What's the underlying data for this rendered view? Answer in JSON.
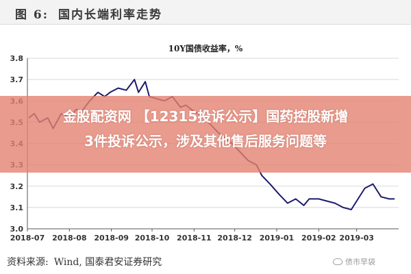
{
  "header": {
    "figure_label": "图 6:",
    "title": "国内长端利率走势"
  },
  "banner": {
    "line1": "金股配资网 【12315投诉公示】国药控股新增",
    "line2": "3件投诉公示，涉及其他售后服务问题等"
  },
  "source": {
    "label": "资料来源:",
    "value": "Wind, 国泰君安证券研究"
  },
  "watermark": {
    "text": "债市早袋",
    "icon": "wechat-icon"
  },
  "colors": {
    "series": "#1a1a6e",
    "banner": "#e48270",
    "grid": "#d8d8d8"
  },
  "chart_data": {
    "type": "line",
    "title": "10Y国债收益率，%",
    "xlabel": "",
    "ylabel": "",
    "ylim": [
      3.0,
      3.8
    ],
    "yticks": [
      "3.0",
      "3.1",
      "3.2",
      "3.3",
      "3.4",
      "3.5",
      "3.6",
      "3.7",
      "3.8"
    ],
    "xticks": [
      "2018-07",
      "2018-08",
      "2018-09",
      "2018-10",
      "2018-11",
      "2018-12",
      "2019-01",
      "2019-02",
      "2019-03"
    ],
    "grid": true,
    "legend": "none",
    "series": [
      {
        "name": "",
        "x": [
          "2018-07-02",
          "2018-07-06",
          "2018-07-10",
          "2018-07-16",
          "2018-07-20",
          "2018-07-26",
          "2018-08-01",
          "2018-08-06",
          "2018-08-10",
          "2018-08-16",
          "2018-08-22",
          "2018-08-27",
          "2018-08-31",
          "2018-09-06",
          "2018-09-12",
          "2018-09-18",
          "2018-09-21",
          "2018-09-26",
          "2018-09-29",
          "2018-10-10",
          "2018-10-16",
          "2018-10-22",
          "2018-10-26",
          "2018-11-01",
          "2018-11-07",
          "2018-11-13",
          "2018-11-19",
          "2018-11-23",
          "2018-11-29",
          "2018-12-05",
          "2018-12-11",
          "2018-12-17",
          "2018-12-21",
          "2018-12-27",
          "2019-01-03",
          "2019-01-09",
          "2019-01-15",
          "2019-01-21",
          "2019-01-25",
          "2019-02-01",
          "2019-02-13",
          "2019-02-19",
          "2019-02-25",
          "2019-03-01",
          "2019-03-07",
          "2019-03-13",
          "2019-03-19",
          "2019-03-25",
          "2019-03-29"
        ],
        "values": [
          3.52,
          3.54,
          3.5,
          3.52,
          3.47,
          3.54,
          3.52,
          3.56,
          3.55,
          3.6,
          3.64,
          3.62,
          3.64,
          3.66,
          3.65,
          3.7,
          3.64,
          3.69,
          3.62,
          3.6,
          3.62,
          3.57,
          3.58,
          3.55,
          3.53,
          3.49,
          3.45,
          3.43,
          3.4,
          3.36,
          3.32,
          3.3,
          3.25,
          3.21,
          3.16,
          3.12,
          3.14,
          3.11,
          3.14,
          3.14,
          3.12,
          3.1,
          3.09,
          3.13,
          3.19,
          3.21,
          3.15,
          3.14,
          3.14
        ]
      }
    ]
  }
}
